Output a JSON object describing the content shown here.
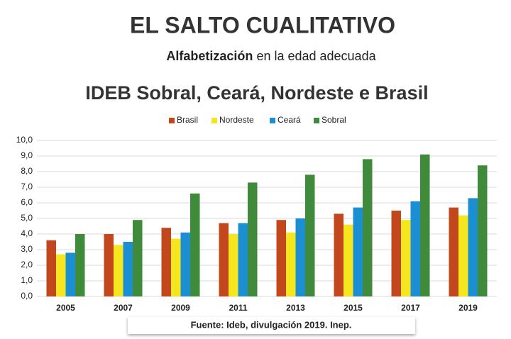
{
  "header": {
    "title": "EL SALTO CUALITATIVO",
    "subtitle": [
      "Alfabetización",
      "en la edad adecuada"
    ]
  },
  "chart_data": {
    "type": "bar",
    "title": "IDEB Sobral, Ceará, Nordeste e Brasil",
    "source": "Fuente: Ideb, divulgación 2019. Inep.",
    "categories": [
      "2005",
      "2007",
      "2009",
      "2011",
      "2013",
      "2015",
      "2017",
      "2019"
    ],
    "series": [
      {
        "name": "Brasil",
        "color": "#c2471d",
        "values": [
          3.6,
          4.0,
          4.4,
          4.7,
          4.9,
          5.3,
          5.5,
          5.7
        ]
      },
      {
        "name": "Nordeste",
        "color": "#f6e620",
        "values": [
          2.7,
          3.3,
          3.7,
          4.0,
          4.1,
          4.6,
          4.9,
          5.2
        ]
      },
      {
        "name": "Ceará",
        "color": "#1b8fd2",
        "values": [
          2.8,
          3.5,
          4.1,
          4.7,
          5.0,
          5.7,
          6.1,
          6.3
        ]
      },
      {
        "name": "Sobral",
        "color": "#3f8b3b",
        "values": [
          4.0,
          4.9,
          6.6,
          7.3,
          7.8,
          8.8,
          9.1,
          8.4
        ]
      }
    ],
    "ylim": [
      0,
      10
    ],
    "yticks": [
      {
        "value": 0,
        "label": "0,0"
      },
      {
        "value": 1,
        "label": "1,0"
      },
      {
        "value": 2,
        "label": "2,0"
      },
      {
        "value": 3,
        "label": "3,0"
      },
      {
        "value": 4,
        "label": "4,0"
      },
      {
        "value": 5,
        "label": "5,0"
      },
      {
        "value": 6,
        "label": "6,0"
      },
      {
        "value": 7,
        "label": "7,0"
      },
      {
        "value": 8,
        "label": "8,0"
      },
      {
        "value": 9,
        "label": "9,0"
      },
      {
        "value": 10,
        "label": "10,0"
      }
    ],
    "grid": true,
    "legend": "top"
  }
}
